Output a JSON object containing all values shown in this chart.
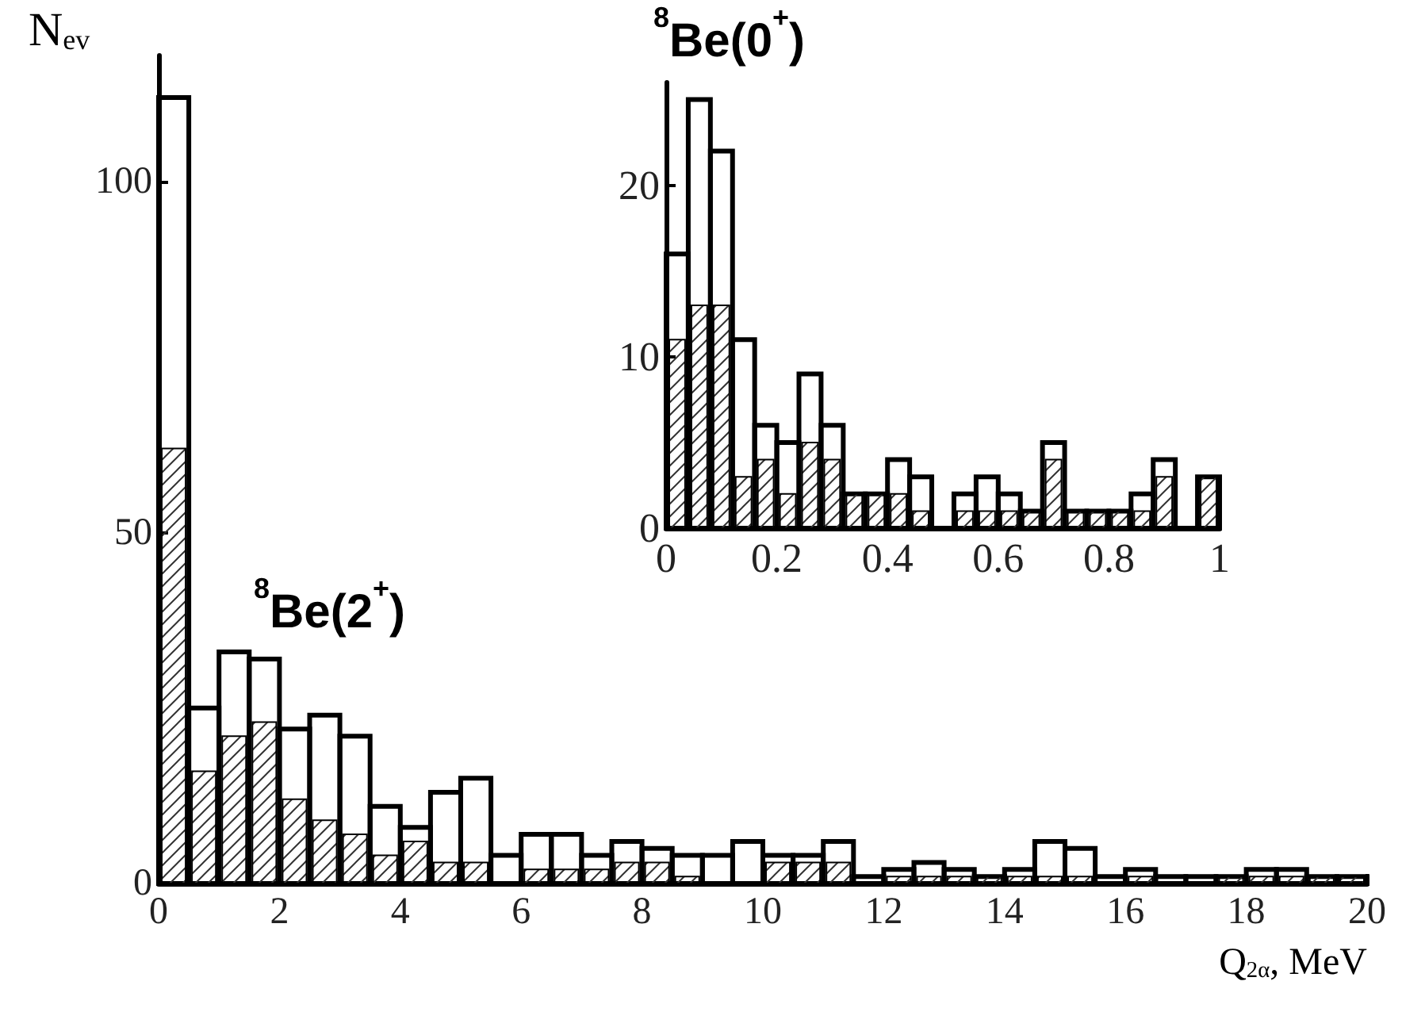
{
  "chart_data": [
    {
      "type": "histogram",
      "xlabel": "Q$_{2α}$, MeV",
      "ylabel": "N$_{ev}$",
      "annotations": [
        "$^{8}$Be(2$^{+}$)"
      ],
      "bins": [
        0,
        0.5,
        1,
        1.5,
        2,
        2.5,
        3,
        3.5,
        4,
        4.5,
        5,
        5.5,
        6,
        6.5,
        7,
        7.5,
        8,
        8.5,
        9,
        9.5,
        10,
        10.5,
        11,
        11.5,
        12,
        12.5,
        13,
        13.5,
        14,
        14.5,
        15,
        15.5,
        16,
        16.5,
        17,
        17.5,
        18,
        18.5,
        19,
        19.5,
        20
      ],
      "series": [
        {
          "color": "#000000",
          "values": [
            112,
            25,
            33,
            32,
            22,
            24,
            21,
            11,
            8,
            13,
            15,
            4,
            7,
            7,
            4,
            6,
            5,
            4,
            4,
            6,
            4,
            4,
            6,
            1,
            2,
            3,
            2,
            1,
            2,
            6,
            5,
            1,
            2,
            1,
            1,
            1,
            2,
            2,
            1,
            1
          ]
        },
        {
          "color": "#000000",
          "values": [
            62,
            16,
            21,
            23,
            12,
            9,
            7,
            4,
            6,
            3,
            3,
            0,
            2,
            2,
            2,
            3,
            3,
            1,
            0,
            0,
            3,
            3,
            3,
            0,
            1,
            1,
            1,
            1,
            1,
            1,
            1,
            0,
            1,
            0,
            0,
            1,
            1,
            1,
            1,
            1
          ]
        }
      ],
      "xlim": [
        0,
        20
      ],
      "ylim": [
        0,
        118
      ],
      "xticks": [
        0,
        2,
        4,
        6,
        8,
        10,
        12,
        14,
        16,
        18,
        20
      ],
      "yticks": [
        0,
        50,
        100
      ]
    },
    {
      "type": "histogram",
      "title": "$^{8}$Be(0$^{+}$)",
      "bins": [
        0,
        0.04,
        0.08,
        0.12,
        0.16,
        0.2,
        0.24,
        0.28,
        0.32,
        0.36,
        0.4,
        0.44,
        0.48,
        0.52,
        0.56,
        0.6,
        0.64,
        0.68,
        0.72,
        0.76,
        0.8,
        0.84,
        0.88,
        0.92,
        0.96,
        1
      ],
      "series": [
        {
          "color": "#000000",
          "values": [
            16,
            25,
            22,
            11,
            6,
            5,
            9,
            6,
            2,
            2,
            4,
            3,
            0,
            2,
            3,
            2,
            1,
            5,
            1,
            1,
            1,
            2,
            4,
            0,
            3
          ]
        },
        {
          "color": "#000000",
          "values": [
            11,
            13,
            13,
            3,
            4,
            2,
            5,
            4,
            2,
            2,
            2,
            1,
            0,
            1,
            1,
            1,
            1,
            4,
            1,
            1,
            1,
            1,
            3,
            0,
            3
          ]
        }
      ],
      "xlim": [
        0,
        1
      ],
      "ylim": [
        0,
        26
      ],
      "xticks": [
        0,
        0.2,
        0.4,
        0.6,
        0.8,
        1
      ],
      "yticks": [
        0,
        10,
        20
      ]
    }
  ]
}
